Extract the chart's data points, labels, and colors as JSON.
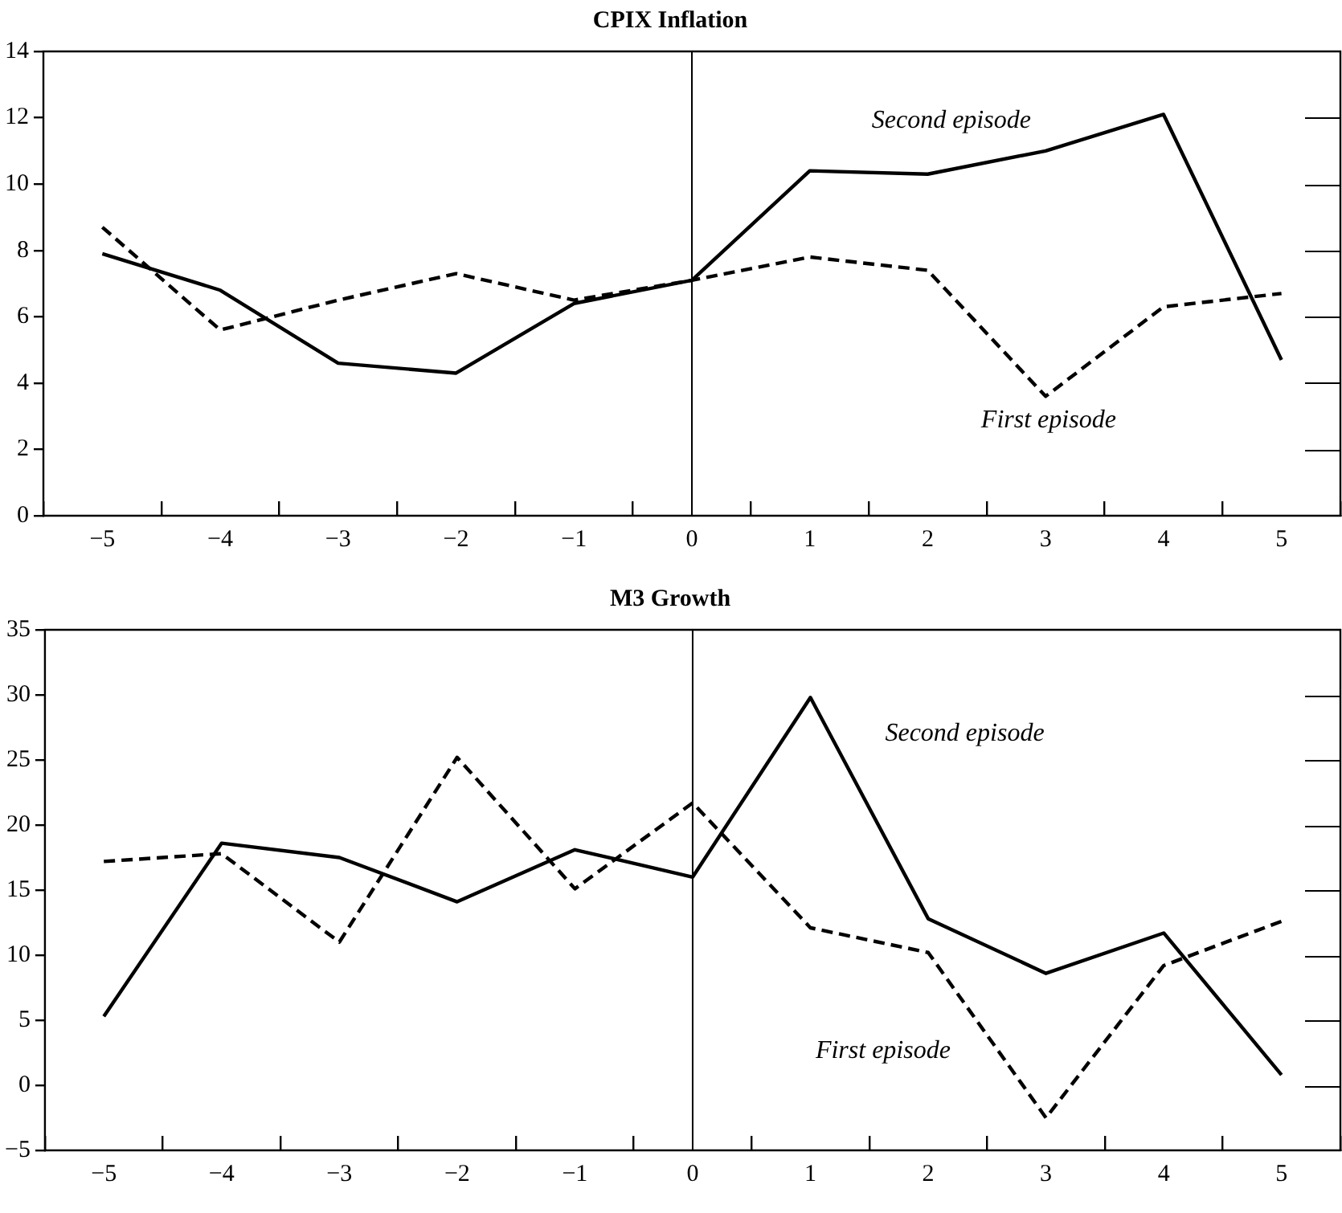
{
  "chart_data": [
    {
      "type": "line",
      "title": "CPIX Inflation",
      "categories": [
        "−5",
        "−4",
        "−3",
        "−2",
        "−1",
        "0",
        "1",
        "2",
        "3",
        "4",
        "5"
      ],
      "series": [
        {
          "name": "Second episode",
          "color": "#000000",
          "line_style": "solid",
          "values": [
            7.9,
            6.8,
            4.6,
            4.3,
            6.4,
            7.1,
            10.4,
            10.3,
            11.0,
            12.1,
            4.7
          ]
        },
        {
          "name": "First episode",
          "color": "#000000",
          "line_style": "dashed",
          "values": [
            8.7,
            5.6,
            6.5,
            7.3,
            6.5,
            7.1,
            7.8,
            7.4,
            3.6,
            6.3,
            6.7
          ]
        }
      ],
      "ylim": [
        0,
        14
      ],
      "yticks": [
        0,
        2,
        4,
        6,
        8,
        10,
        12,
        14
      ],
      "ref_lines": [
        {
          "axis": "x",
          "value": "0",
          "color": "#000000"
        }
      ],
      "grid": false,
      "legend": false,
      "marker": "none"
    },
    {
      "type": "line",
      "title": "M3 Growth",
      "categories": [
        "−5",
        "−4",
        "−3",
        "−2",
        "−1",
        "0",
        "1",
        "2",
        "3",
        "4",
        "5"
      ],
      "series": [
        {
          "name": "Second episode",
          "color": "#000000",
          "line_style": "solid",
          "values": [
            5.3,
            18.6,
            17.5,
            14.1,
            18.1,
            16.0,
            29.8,
            12.8,
            8.6,
            11.7,
            0.8
          ]
        },
        {
          "name": "First episode",
          "color": "#000000",
          "line_style": "dashed",
          "values": [
            17.2,
            17.8,
            11.0,
            25.2,
            15.1,
            21.7,
            12.1,
            10.2,
            -2.5,
            9.2,
            12.6
          ]
        }
      ],
      "ylim": [
        -5,
        35
      ],
      "yticks": [
        {
          "value": -5,
          "label": "−5"
        },
        0,
        5,
        10,
        15,
        20,
        25,
        30,
        35
      ],
      "ref_lines": [
        {
          "axis": "x",
          "value": "0",
          "color": "#000000"
        }
      ],
      "grid": false,
      "legend": false,
      "marker": "none"
    }
  ]
}
